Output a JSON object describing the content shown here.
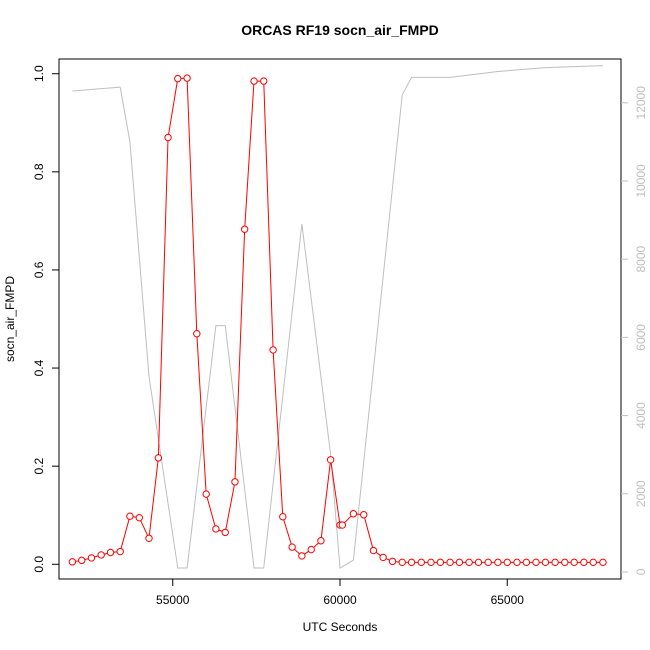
{
  "chart_data": {
    "type": "line",
    "title": "ORCAS RF19 socn_air_FMPD",
    "xlabel": "UTC Seconds",
    "ylabel": "socn_air_FMPD",
    "xlim": [
      51600,
      68400
    ],
    "ylim": [
      -0.03,
      1.03
    ],
    "y2lim": [
      -180,
      13120
    ],
    "x_ticks": [
      55000,
      60000,
      65000
    ],
    "x_tick_labels": [
      "55000",
      "60000",
      "65000"
    ],
    "y_ticks": [
      0.0,
      0.2,
      0.4,
      0.6,
      0.8,
      1.0
    ],
    "y_tick_labels": [
      "0.0",
      "0.2",
      "0.4",
      "0.6",
      "0.8",
      "1.0"
    ],
    "y2_ticks": [
      0,
      2000,
      4000,
      6000,
      8000,
      10000,
      12000
    ],
    "y2_tick_labels": [
      "0",
      "2000",
      "4000",
      "6000",
      "8000",
      "10000",
      "12000"
    ],
    "grid": false,
    "legend": "none",
    "series": [
      {
        "axis": "left",
        "color": "#ff0000",
        "style": "line+open-circles",
        "x": [
          52000,
          52280,
          52570,
          52860,
          53140,
          53430,
          53720,
          54000,
          54290,
          54570,
          54860,
          55150,
          55430,
          55720,
          56000,
          56290,
          56570,
          56860,
          57150,
          57430,
          57720,
          58000,
          58290,
          58570,
          58860,
          59140,
          59430,
          59720,
          60000,
          60070,
          60400,
          60710,
          61000,
          61290,
          61570,
          61860,
          62140,
          62430,
          62720,
          63000,
          63290,
          63570,
          63860,
          64140,
          64430,
          64720,
          65000,
          65290,
          65570,
          65860,
          66140,
          66430,
          66720,
          67000,
          67290,
          67570,
          67860
        ],
        "y": [
          0.005,
          0.008,
          0.013,
          0.019,
          0.024,
          0.026,
          0.098,
          0.095,
          0.053,
          0.217,
          0.87,
          0.99,
          0.991,
          0.47,
          0.143,
          0.072,
          0.065,
          0.168,
          0.683,
          0.985,
          0.985,
          0.437,
          0.097,
          0.035,
          0.017,
          0.03,
          0.048,
          0.213,
          0.08,
          0.08,
          0.103,
          0.101,
          0.028,
          0.014,
          0.006,
          0.004,
          0.004,
          0.004,
          0.004,
          0.004,
          0.004,
          0.004,
          0.004,
          0.004,
          0.004,
          0.004,
          0.004,
          0.004,
          0.004,
          0.004,
          0.004,
          0.004,
          0.004,
          0.004,
          0.004,
          0.004,
          0.004
        ]
      },
      {
        "axis": "right",
        "color": "#bebebe",
        "style": "line",
        "x": [
          52000,
          53430,
          53720,
          54290,
          55150,
          55430,
          56290,
          56570,
          57430,
          57720,
          58860,
          59720,
          60000,
          60400,
          61860,
          62140,
          63290,
          64720,
          66140,
          67860
        ],
        "y": [
          12300,
          12400,
          11000,
          5000,
          100,
          100,
          6300,
          6300,
          100,
          100,
          8900,
          3000,
          100,
          300,
          12200,
          12650,
          12650,
          12800,
          12900,
          12950
        ]
      }
    ]
  }
}
